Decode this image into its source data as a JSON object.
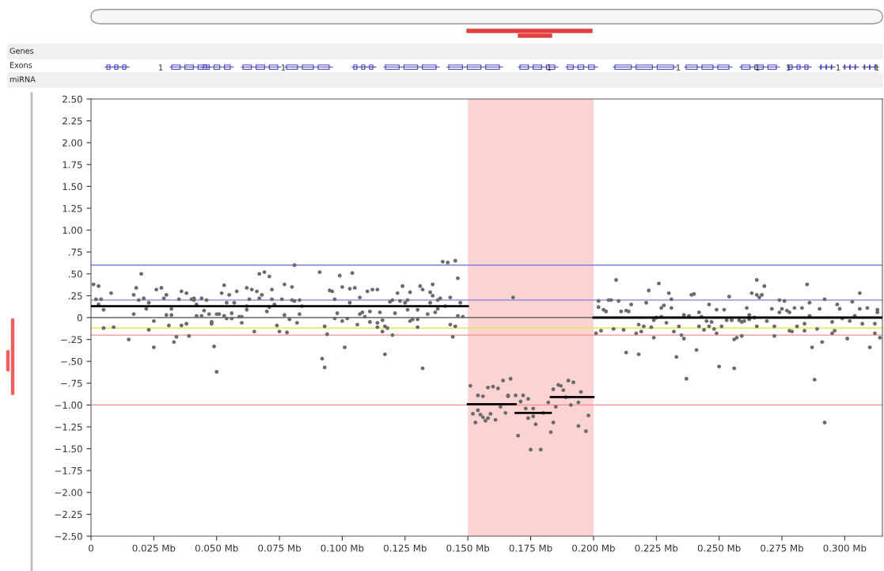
{
  "chart_data": {
    "type": "scatter",
    "xlim": [
      0,
      0.315
    ],
    "ylim": [
      -2.5,
      2.5
    ],
    "xticks": [
      0,
      {
        "value": 0.025,
        "label": "0.025 Mb"
      },
      {
        "value": 0.05,
        "label": "0.050 Mb"
      },
      {
        "value": 0.075,
        "label": "0.075 Mb"
      },
      {
        "value": 0.1,
        "label": "0.100 Mb"
      },
      {
        "value": 0.125,
        "label": "0.125 Mb"
      },
      {
        "value": 0.15,
        "label": "0.150 Mb"
      },
      {
        "value": 0.175,
        "label": "0.175 Mb"
      },
      {
        "value": 0.2,
        "label": "0.200 Mb"
      },
      {
        "value": 0.225,
        "label": "0.225 Mb"
      },
      {
        "value": 0.25,
        "label": "0.250 Mb"
      },
      {
        "value": 0.275,
        "label": "0.275 Mb"
      },
      {
        "value": 0.3,
        "label": "0.300 Mb"
      }
    ],
    "yticks": [
      {
        "value": 2.5,
        "label": "2.50"
      },
      {
        "value": 2.25,
        "label": "2.25"
      },
      {
        "value": 2.0,
        "label": "2.00"
      },
      {
        "value": 1.75,
        "label": "1.75"
      },
      {
        "value": 1.5,
        "label": "1.50"
      },
      {
        "value": 1.25,
        "label": "1.25"
      },
      {
        "value": 1.0,
        "label": "1.00"
      },
      {
        "value": 0.75,
        "label": ".75"
      },
      {
        "value": 0.5,
        "label": ".50"
      },
      {
        "value": 0.25,
        "label": ".25"
      },
      0,
      {
        "value": -0.25,
        "label": "−.25"
      },
      {
        "value": -0.5,
        "label": "−.50"
      },
      {
        "value": -0.75,
        "label": "−.75"
      },
      {
        "value": -1.0,
        "label": "−1.00"
      },
      {
        "value": -1.25,
        "label": "−1.25"
      },
      {
        "value": -1.5,
        "label": "−1.50"
      },
      {
        "value": -1.75,
        "label": "−1.75"
      },
      {
        "value": -2.0,
        "label": "−2.00"
      },
      {
        "value": -2.25,
        "label": "−2.25"
      },
      {
        "value": -2.5,
        "label": "−2.50"
      }
    ],
    "grid": false,
    "legend": false,
    "series": [
      {
        "marker": "circle",
        "color": "#6b6b6b",
        "x": [
          0.001,
          0.002,
          0.003,
          0.003,
          0.004,
          0.005,
          0.005,
          0.008,
          0.009,
          0.015,
          0.017,
          0.017,
          0.018,
          0.019,
          0.02,
          0.021,
          0.022,
          0.023,
          0.023,
          0.025,
          0.025,
          0.026,
          0.028,
          0.029,
          0.03,
          0.03,
          0.031,
          0.032,
          0.032,
          0.033,
          0.034,
          0.035,
          0.036,
          0.036,
          0.038,
          0.038,
          0.039,
          0.04,
          0.041,
          0.041,
          0.042,
          0.042,
          0.044,
          0.044,
          0.045,
          0.046,
          0.047,
          0.048,
          0.048,
          0.049,
          0.05,
          0.05,
          0.051,
          0.052,
          0.053,
          0.053,
          0.054,
          0.054,
          0.055,
          0.056,
          0.056,
          0.057,
          0.058,
          0.059,
          0.06,
          0.06,
          0.062,
          0.062,
          0.062,
          0.063,
          0.064,
          0.065,
          0.066,
          0.067,
          0.067,
          0.069,
          0.068,
          0.07,
          0.071,
          0.071,
          0.072,
          0.072,
          0.073,
          0.074,
          0.075,
          0.076,
          0.077,
          0.077,
          0.078,
          0.079,
          0.08,
          0.08,
          0.081,
          0.081,
          0.082,
          0.083,
          0.083,
          0.084,
          0.091,
          0.092,
          0.093,
          0.093,
          0.094,
          0.095,
          0.096,
          0.097,
          0.097,
          0.098,
          0.099,
          0.1,
          0.1,
          0.101,
          0.102,
          0.103,
          0.103,
          0.104,
          0.105,
          0.106,
          0.107,
          0.107,
          0.108,
          0.109,
          0.11,
          0.111,
          0.111,
          0.112,
          0.114,
          0.114,
          0.114,
          0.115,
          0.116,
          0.116,
          0.117,
          0.117,
          0.118,
          0.119,
          0.12,
          0.12,
          0.121,
          0.122,
          0.123,
          0.124,
          0.125,
          0.126,
          0.126,
          0.127,
          0.127,
          0.128,
          0.13,
          0.13,
          0.13,
          0.131,
          0.132,
          0.132,
          0.134,
          0.135,
          0.135,
          0.136,
          0.136,
          0.137,
          0.138,
          0.138,
          0.139,
          0.14,
          0.141,
          0.142,
          0.143,
          0.143,
          0.144,
          0.145,
          0.145,
          0.146,
          0.146,
          0.147,
          0.148,
          0.151,
          0.152,
          0.153,
          0.154,
          0.154,
          0.155,
          0.156,
          0.156,
          0.157,
          0.158,
          0.158,
          0.159,
          0.16,
          0.161,
          0.162,
          0.163,
          0.164,
          0.165,
          0.166,
          0.166,
          0.167,
          0.168,
          0.169,
          0.17,
          0.171,
          0.172,
          0.173,
          0.174,
          0.174,
          0.175,
          0.176,
          0.176,
          0.177,
          0.179,
          0.18,
          0.182,
          0.183,
          0.184,
          0.184,
          0.185,
          0.186,
          0.187,
          0.188,
          0.189,
          0.19,
          0.191,
          0.192,
          0.194,
          0.194,
          0.195,
          0.197,
          0.198,
          0.201,
          0.202,
          0.202,
          0.203,
          0.204,
          0.205,
          0.206,
          0.207,
          0.208,
          0.209,
          0.21,
          0.211,
          0.212,
          0.213,
          0.213,
          0.214,
          0.215,
          0.217,
          0.218,
          0.218,
          0.219,
          0.22,
          0.221,
          0.222,
          0.223,
          0.224,
          0.224,
          0.225,
          0.226,
          0.227,
          0.227,
          0.228,
          0.229,
          0.23,
          0.231,
          0.231,
          0.232,
          0.233,
          0.234,
          0.235,
          0.236,
          0.236,
          0.237,
          0.238,
          0.239,
          0.24,
          0.241,
          0.242,
          0.242,
          0.243,
          0.244,
          0.245,
          0.246,
          0.246,
          0.247,
          0.248,
          0.249,
          0.249,
          0.25,
          0.251,
          0.252,
          0.253,
          0.254,
          0.255,
          0.256,
          0.256,
          0.257,
          0.258,
          0.259,
          0.259,
          0.26,
          0.261,
          0.262,
          0.262,
          0.263,
          0.264,
          0.265,
          0.265,
          0.265,
          0.266,
          0.267,
          0.268,
          0.269,
          0.271,
          0.272,
          0.272,
          0.274,
          0.274,
          0.275,
          0.276,
          0.277,
          0.278,
          0.278,
          0.279,
          0.28,
          0.281,
          0.283,
          0.284,
          0.284,
          0.285,
          0.286,
          0.286,
          0.287,
          0.288,
          0.289,
          0.29,
          0.291,
          0.292,
          0.292,
          0.295,
          0.295,
          0.296,
          0.297,
          0.298,
          0.299,
          0.301,
          0.302,
          0.303,
          0.304,
          0.306,
          0.306,
          0.307,
          0.309,
          0.31,
          0.312,
          0.312,
          0.313,
          0.313,
          0.314
        ],
        "values": [
          0.38,
          0.21,
          0.15,
          0.36,
          0.21,
          0.09,
          -0.12,
          0.28,
          -0.11,
          -0.25,
          0.26,
          0.04,
          0.34,
          0.2,
          0.5,
          0.22,
          0.1,
          -0.14,
          0.17,
          -0.34,
          -0.04,
          0.32,
          0.34,
          0.22,
          0.26,
          0.03,
          -0.09,
          0.03,
          0.1,
          -0.28,
          -0.22,
          0.21,
          0.3,
          -0.09,
          -0.07,
          0.28,
          -0.21,
          0.21,
          0.22,
          0.2,
          0.15,
          0.02,
          0.02,
          0.22,
          0.08,
          0.2,
          0.04,
          -0.07,
          -0.05,
          -0.33,
          0.04,
          -0.62,
          0.04,
          0.28,
          0.37,
          0.02,
          -0.01,
          0.17,
          0.26,
          0.05,
          -0.01,
          0.17,
          0.3,
          0.01,
          -0.06,
          0.01,
          0.13,
          0.34,
          0.09,
          0.21,
          0.32,
          -0.16,
          0.3,
          0.22,
          0.5,
          0.52,
          0.26,
          0.07,
          0.12,
          0.47,
          0.21,
          0.32,
          0.15,
          -0.09,
          -0.16,
          0.21,
          0.03,
          0.38,
          -0.17,
          -0.02,
          0.2,
          0.35,
          0.19,
          0.6,
          -0.06,
          0.2,
          0.04,
          0.13,
          0.52,
          -0.47,
          -0.57,
          -0.1,
          -0.19,
          0.31,
          0.3,
          0.21,
          -0.01,
          0.05,
          0.48,
          0.35,
          -0.04,
          -0.34,
          -0.01,
          0.17,
          0.33,
          0.51,
          0.34,
          -0.08,
          0.04,
          0.23,
          0.06,
          0.01,
          0.3,
          -0.05,
          0.07,
          0.32,
          -0.06,
          0.32,
          -0.11,
          0.06,
          -0.16,
          -0.03,
          -0.42,
          -0.1,
          -0.12,
          0.18,
          0.2,
          -0.2,
          0.05,
          0.28,
          0.19,
          0.36,
          0.17,
          0.2,
          0.09,
          -0.04,
          0.29,
          -0.02,
          -0.11,
          -0.02,
          0.09,
          0.36,
          -0.58,
          0.32,
          0.04,
          0.17,
          0.29,
          0.25,
          0.38,
          0.06,
          0.2,
          0.1,
          0.22,
          0.64,
          0.13,
          0.63,
          0.23,
          -0.08,
          -0.22,
          -0.1,
          0.65,
          0.45,
          0.02,
          0.17,
          0.01,
          -0.78,
          -1.1,
          -1.2,
          -0.89,
          -1.06,
          -1.11,
          -0.9,
          -1.14,
          -1.18,
          -0.8,
          -1.15,
          -1.1,
          -0.79,
          -1.17,
          -0.81,
          -1.02,
          -0.72,
          -1.09,
          -0.89,
          -0.9,
          -0.7,
          0.23,
          -0.89,
          -1.35,
          -0.96,
          -0.89,
          -1.04,
          -0.93,
          -1.15,
          -1.51,
          -1.13,
          -1.04,
          -1.22,
          -1.51,
          -1.09,
          -0.97,
          -1.31,
          -0.82,
          -1.2,
          -1.02,
          -0.77,
          -0.78,
          -0.83,
          -0.91,
          -0.72,
          -1.0,
          -0.74,
          -1.24,
          -0.97,
          -0.85,
          -1.3,
          -1.12,
          -0.18,
          0.19,
          0.12,
          -0.15,
          0.09,
          0.07,
          0.2,
          0.2,
          -0.13,
          0.43,
          0.19,
          0.07,
          -0.14,
          0.08,
          -0.4,
          0.07,
          0.15,
          -0.18,
          -0.42,
          -0.08,
          -0.16,
          -0.1,
          0.17,
          0.31,
          -0.11,
          -0.23,
          -0.03,
          0.0,
          0.39,
          0.11,
          0.01,
          0.14,
          -0.06,
          0.28,
          0.21,
          0.11,
          -0.16,
          -0.45,
          -0.1,
          -0.2,
          -0.24,
          0.03,
          -0.7,
          0.02,
          0.26,
          0.27,
          -0.37,
          0.06,
          -0.1,
          0.01,
          -0.14,
          -0.04,
          0.15,
          -0.1,
          -0.05,
          -0.13,
          0.09,
          -0.18,
          -0.56,
          -0.1,
          0.09,
          -0.03,
          0.24,
          -0.03,
          -0.25,
          -0.58,
          -0.23,
          -0.03,
          -0.21,
          -0.05,
          -0.04,
          0.11,
          -0.02,
          0.03,
          0.28,
          0.0,
          -0.1,
          0.26,
          0.43,
          0.23,
          0.26,
          0.36,
          -0.04,
          0.1,
          -0.1,
          -0.21,
          0.2,
          0.06,
          0.1,
          0.19,
          0.08,
          -0.15,
          0.06,
          -0.16,
          0.11,
          -0.1,
          0.11,
          -0.07,
          -0.15,
          0.38,
          0.17,
          0.02,
          -0.34,
          -0.71,
          -0.13,
          0.1,
          -0.28,
          0.21,
          -1.2,
          -0.05,
          -0.18,
          -0.15,
          0.15,
          0.1,
          -0.01,
          -0.24,
          -0.04,
          0.18,
          0.02,
          0.1,
          0.28,
          -0.07,
          0.11,
          -0.34,
          -0.18,
          -0.07,
          0.09,
          0.06,
          -0.23
        ]
      },
      {
        "type": "line",
        "color": "#000000",
        "x": [
          0,
          0.15
        ],
        "values": [
          0.13,
          0.13
        ]
      },
      {
        "type": "line",
        "color": "#000000",
        "x": [
          0.15,
          0.169
        ],
        "values": [
          -0.99,
          -0.99
        ]
      },
      {
        "type": "line",
        "color": "#000000",
        "x": [
          0.169,
          0.183
        ],
        "values": [
          -1.09,
          -1.09
        ]
      },
      {
        "type": "line",
        "color": "#000000",
        "x": [
          0.183,
          0.2
        ],
        "values": [
          -0.91,
          -0.91
        ]
      },
      {
        "type": "line",
        "color": "#000000",
        "x": [
          0.2,
          0.315
        ],
        "values": [
          0.0,
          0.0
        ]
      }
    ],
    "ref_lines": [
      {
        "axis": "y",
        "value": 0.6,
        "color": "#7f7fe0"
      },
      {
        "axis": "y",
        "value": 0.2,
        "color": "#7f7fe0"
      },
      {
        "axis": "y",
        "value": 0,
        "color": "#666666"
      },
      {
        "axis": "y",
        "value": -0.12,
        "color": "#e8e84a"
      },
      {
        "axis": "y",
        "value": -0.2,
        "color": "#f09090"
      },
      {
        "axis": "y",
        "value": -1.0,
        "color": "#f09090"
      }
    ],
    "bands": [
      {
        "axis": "x",
        "from": 0.15,
        "to": 0.2,
        "color": "#fbd3d3"
      }
    ],
    "annotations": [
      "Genes",
      "Exons",
      "miRNA",
      "1",
      "1",
      "1",
      "1",
      "1",
      "1",
      "1",
      "1"
    ]
  }
}
